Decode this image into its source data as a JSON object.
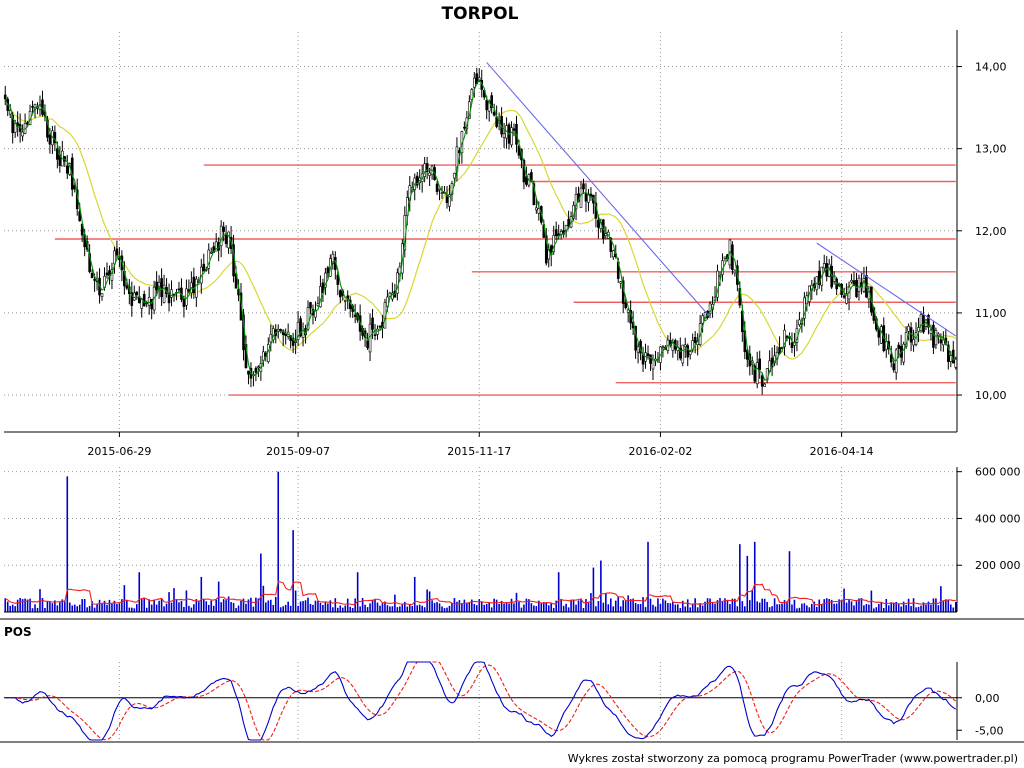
{
  "chart_data": {
    "type": "candlestick",
    "title": "TORPOL",
    "footer": "Wykres został stworzony za pomocą programu PowerTrader (www.powertrader.pl)",
    "x_ticks": [
      "2015-06-29",
      "2015-09-07",
      "2015-11-17",
      "2016-02-02",
      "2016-04-14"
    ],
    "price_panel": {
      "y_ticks": [
        "10,00",
        "11,00",
        "12,00",
        "13,00",
        "14,00"
      ],
      "ylim": [
        9.55,
        14.25
      ],
      "close_anchors": [
        [
          0,
          13.5
        ],
        [
          7,
          13.1
        ],
        [
          13,
          13.6
        ],
        [
          20,
          13.0
        ],
        [
          26,
          12.7
        ],
        [
          32,
          11.8
        ],
        [
          38,
          11.2
        ],
        [
          44,
          11.7
        ],
        [
          50,
          11.2
        ],
        [
          56,
          11.0
        ],
        [
          62,
          11.3
        ],
        [
          68,
          11.2
        ],
        [
          74,
          11.2
        ],
        [
          80,
          11.6
        ],
        [
          86,
          11.9
        ],
        [
          90,
          12.0
        ],
        [
          94,
          11.1
        ],
        [
          98,
          10.2
        ],
        [
          102,
          10.4
        ],
        [
          108,
          10.7
        ],
        [
          114,
          10.7
        ],
        [
          120,
          10.8
        ],
        [
          126,
          11.2
        ],
        [
          132,
          11.6
        ],
        [
          136,
          11.2
        ],
        [
          140,
          10.9
        ],
        [
          146,
          10.7
        ],
        [
          150,
          10.8
        ],
        [
          154,
          11.1
        ],
        [
          158,
          11.4
        ],
        [
          162,
          12.4
        ],
        [
          166,
          12.6
        ],
        [
          170,
          12.7
        ],
        [
          174,
          12.6
        ],
        [
          178,
          12.3
        ],
        [
          184,
          13.2
        ],
        [
          188,
          13.7
        ],
        [
          191,
          13.8
        ],
        [
          194,
          13.5
        ],
        [
          200,
          13.3
        ],
        [
          206,
          13.1
        ],
        [
          210,
          12.6
        ],
        [
          214,
          12.4
        ],
        [
          218,
          11.6
        ],
        [
          222,
          12.0
        ],
        [
          226,
          12.1
        ],
        [
          230,
          12.4
        ],
        [
          234,
          12.5
        ],
        [
          238,
          12.1
        ],
        [
          242,
          11.9
        ],
        [
          246,
          11.7
        ],
        [
          250,
          11.0
        ],
        [
          254,
          10.6
        ],
        [
          258,
          10.4
        ],
        [
          262,
          10.4
        ],
        [
          266,
          10.6
        ],
        [
          270,
          10.5
        ],
        [
          274,
          10.5
        ],
        [
          278,
          10.6
        ],
        [
          282,
          11.0
        ],
        [
          286,
          11.3
        ],
        [
          290,
          11.6
        ],
        [
          292,
          11.8
        ],
        [
          295,
          11.3
        ],
        [
          298,
          10.6
        ],
        [
          302,
          10.3
        ],
        [
          306,
          10.2
        ],
        [
          310,
          10.5
        ],
        [
          314,
          10.7
        ],
        [
          318,
          10.7
        ],
        [
          322,
          11.1
        ],
        [
          326,
          11.3
        ],
        [
          330,
          11.6
        ],
        [
          334,
          11.4
        ],
        [
          338,
          11.2
        ],
        [
          342,
          11.3
        ],
        [
          346,
          11.3
        ],
        [
          350,
          11.0
        ],
        [
          354,
          10.6
        ],
        [
          358,
          10.4
        ],
        [
          362,
          10.6
        ],
        [
          366,
          10.8
        ],
        [
          370,
          10.9
        ],
        [
          374,
          10.7
        ],
        [
          378,
          10.6
        ],
        [
          382,
          10.4
        ]
      ],
      "support_resistance_lines": [
        {
          "price": 12.8,
          "from": 80,
          "to": 383
        },
        {
          "price": 12.6,
          "from": 210,
          "to": 383
        },
        {
          "price": 11.9,
          "from": 20,
          "to": 383
        },
        {
          "price": 11.5,
          "from": 188,
          "to": 383
        },
        {
          "price": 11.13,
          "from": 229,
          "to": 383
        },
        {
          "price": 10.15,
          "from": 246,
          "to": 383
        },
        {
          "price": 10.0,
          "from": 90,
          "to": 383
        }
      ],
      "trend_lines": [
        {
          "from": [
            194,
            14.05
          ],
          "to": [
            284,
            10.95
          ]
        },
        {
          "from": [
            327,
            11.85
          ],
          "to": [
            383,
            10.72
          ]
        }
      ],
      "ma_short_period": 3,
      "ma_long_period": 20,
      "colors": {
        "candle": "#000000",
        "ma_short": "#009000",
        "ma_long": "#d8d830",
        "sr_line": "#f06060",
        "trend_line": "#6a6ae8"
      }
    },
    "volume_panel": {
      "y_ticks": [
        "200 000",
        "400 000",
        "600 000"
      ],
      "ylim": [
        0,
        620000
      ],
      "spikes": [
        [
          6,
          60000
        ],
        [
          25,
          580000
        ],
        [
          54,
          170000
        ],
        [
          79,
          150000
        ],
        [
          86,
          130000
        ],
        [
          103,
          250000
        ],
        [
          110,
          600000
        ],
        [
          116,
          350000
        ],
        [
          142,
          170000
        ],
        [
          165,
          150000
        ],
        [
          223,
          170000
        ],
        [
          237,
          190000
        ],
        [
          240,
          220000
        ],
        [
          259,
          300000
        ],
        [
          296,
          290000
        ],
        [
          299,
          240000
        ],
        [
          302,
          300000
        ],
        [
          316,
          260000
        ]
      ],
      "ma_period": 10,
      "colors": {
        "bar": "#0000cc",
        "ma": "#ee2020"
      }
    },
    "oscillator_panel": {
      "label": "POS",
      "y_ticks": [
        "-5,00",
        "0,00"
      ],
      "ylim": [
        -6.5,
        5.5
      ],
      "signal_period": 9,
      "colors": {
        "pos": "#0000cc",
        "signal": "#ee2020",
        "zero_line": "#000000"
      }
    }
  }
}
